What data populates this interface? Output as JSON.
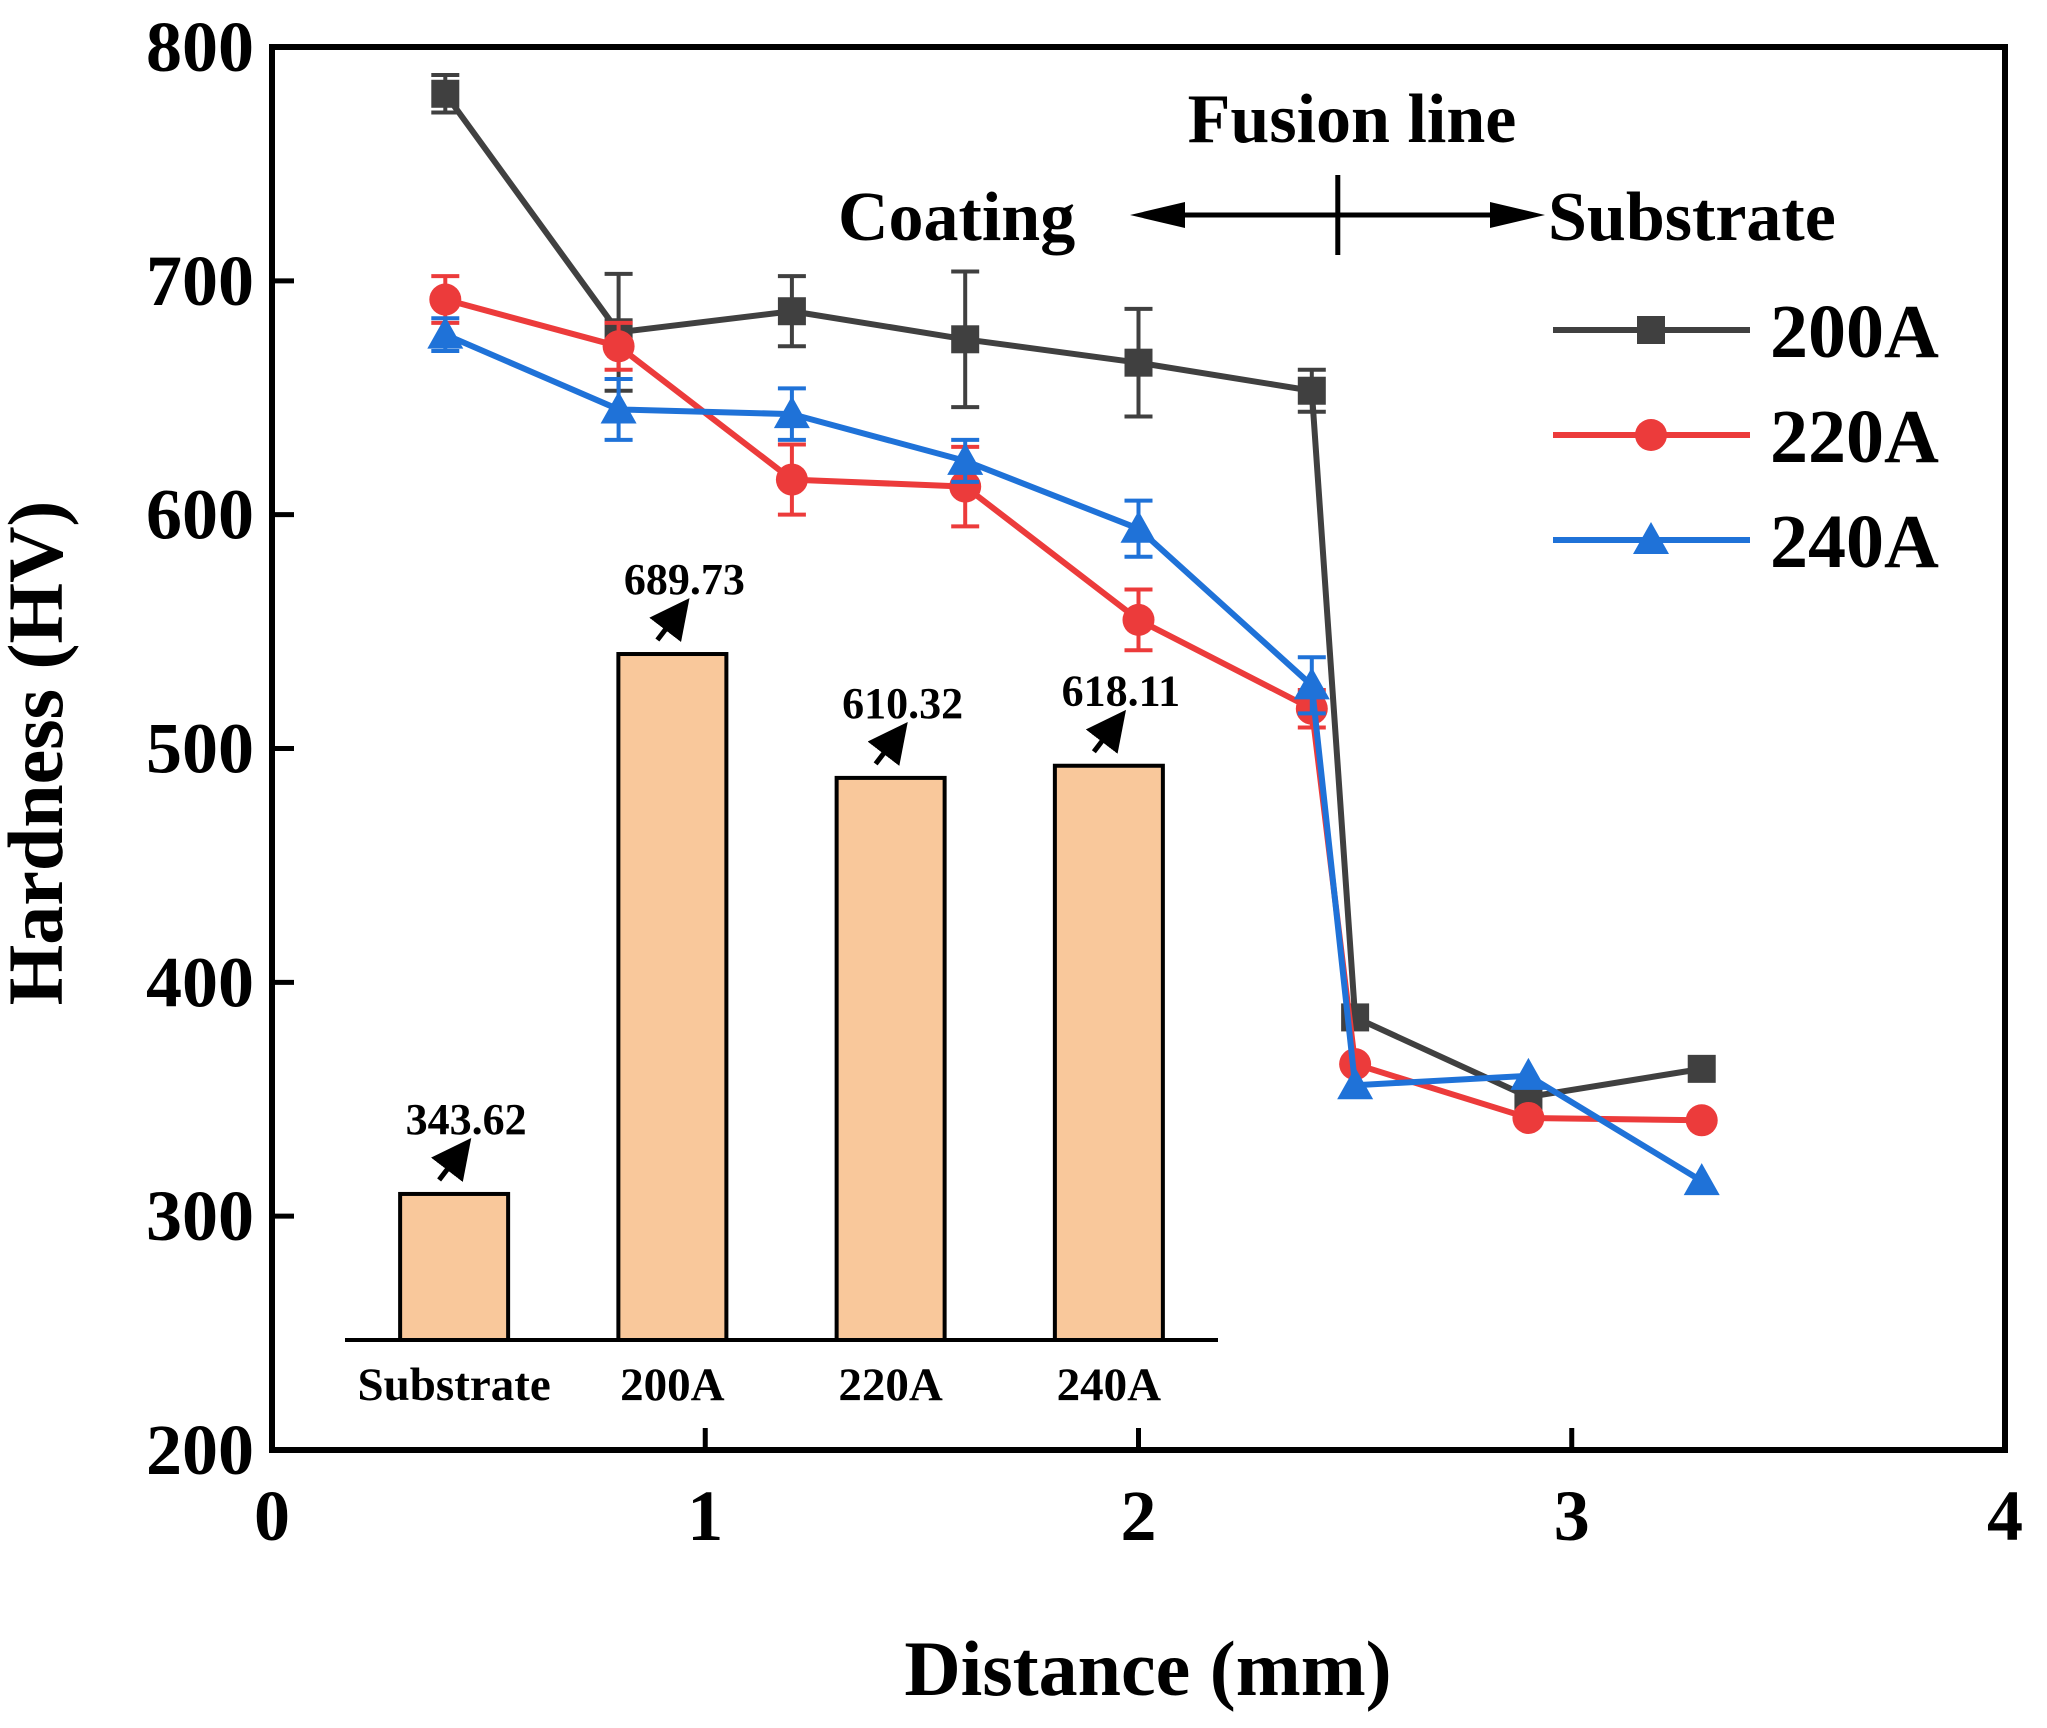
{
  "chart_data": {
    "type": "line",
    "xlabel": "Distance (mm)",
    "ylabel": "Hardness (HV)",
    "xlim": [
      0,
      4
    ],
    "ylim": [
      200,
      800
    ],
    "xticks": [
      "0",
      "1",
      "2",
      "3",
      "4"
    ],
    "yticks": [
      "200",
      "300",
      "400",
      "500",
      "600",
      "700",
      "800"
    ],
    "grid": false,
    "legend_position": "top-right",
    "series": [
      {
        "name": "200A",
        "color": "#404040",
        "marker": "square",
        "x": [
          0.4,
          0.8,
          1.2,
          1.6,
          2.0,
          2.4,
          2.5,
          2.9,
          3.3
        ],
        "y": [
          780,
          678,
          687,
          675,
          665,
          653,
          385,
          351,
          363
        ],
        "yerr": [
          8,
          25,
          15,
          29,
          23,
          9,
          0,
          0,
          0
        ]
      },
      {
        "name": "220A",
        "color": "#ec3b3b",
        "marker": "circle",
        "x": [
          0.4,
          0.8,
          1.2,
          1.6,
          2.0,
          2.4,
          2.5,
          2.9,
          3.3
        ],
        "y": [
          692,
          672,
          615,
          612,
          555,
          517,
          365,
          342,
          341
        ],
        "yerr": [
          10,
          10,
          15,
          17,
          13,
          8,
          0,
          0,
          0
        ]
      },
      {
        "name": "240A",
        "color": "#1f72d8",
        "marker": "triangle",
        "x": [
          0.4,
          0.8,
          1.2,
          1.6,
          2.0,
          2.4,
          2.5,
          2.9,
          3.3
        ],
        "y": [
          677,
          645,
          643,
          623,
          594,
          527,
          356,
          360,
          315
        ],
        "yerr": [
          7,
          13,
          11,
          9,
          12,
          12,
          0,
          0,
          0
        ]
      }
    ],
    "annotations": {
      "fusion_line": "Fusion line",
      "left_region": "Coating",
      "right_region": "Substrate",
      "fusion_x": 2.46
    },
    "inset": {
      "type": "bar",
      "categories": [
        "Substrate",
        "200A",
        "220A",
        "240A"
      ],
      "values": [
        343.62,
        689.73,
        610.32,
        618.11
      ],
      "value_labels": [
        "343.62",
        "689.73",
        "610.32",
        "618.11"
      ],
      "bar_color": "#f9c89b",
      "ylim": [
        250,
        750
      ]
    }
  }
}
